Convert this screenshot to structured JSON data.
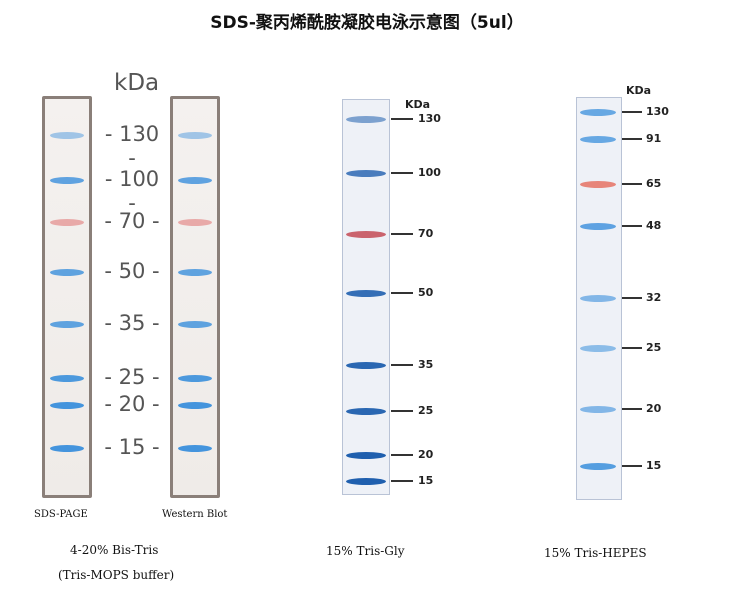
{
  "title": "SDS-聚丙烯酰胺凝胶电泳示意图（5ul）",
  "panel1": {
    "unit": "kDa",
    "markers": [
      "130",
      "100",
      "70",
      "50",
      "35",
      "25",
      "20",
      "15"
    ],
    "lane_left_label": "SDS-PAGE",
    "lane_right_label": "Western Blot",
    "gel_line1": "4-20% Bis-Tris",
    "gel_line2": "(Tris-MOPS buffer)"
  },
  "panel2": {
    "unit": "KDa",
    "markers": [
      "130",
      "100",
      "70",
      "50",
      "35",
      "25",
      "20",
      "15"
    ],
    "gel_label": "15% Tris-Gly"
  },
  "panel3": {
    "unit": "KDa",
    "markers": [
      "130",
      "91",
      "65",
      "48",
      "32",
      "25",
      "20",
      "15"
    ],
    "gel_label": "15% Tris-HEPES"
  },
  "colors": {
    "blue_band": "#3a8fdc",
    "red_band": "#e07070",
    "dark_blue_band": "#1f5fae"
  }
}
